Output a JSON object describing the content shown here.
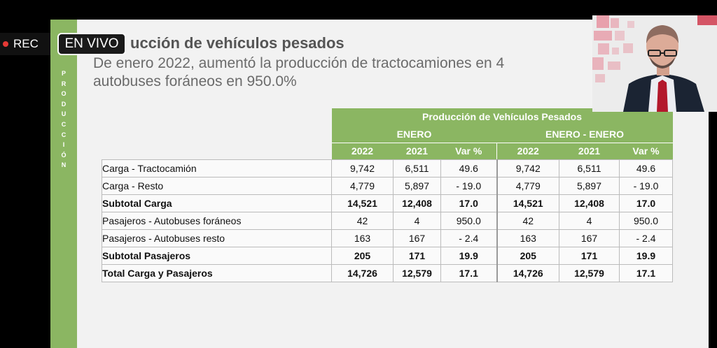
{
  "overlay": {
    "rec_label": "REC",
    "live_label": "EN VIVO"
  },
  "sidebar": {
    "letters": [
      "P",
      "R",
      "O",
      "D",
      "U",
      "C",
      "C",
      "I",
      "Ó",
      "N"
    ]
  },
  "slide": {
    "title": "ucción de vehículos pesados",
    "subtitle_line1": "De enero 2022, aumentó la producción de tractocamiones en 4",
    "subtitle_line2": "autobuses foráneos en 950.0%"
  },
  "table": {
    "caption": "Producción de Vehículos Pesados",
    "group1": "ENERO",
    "group2": "ENERO - ENERO",
    "columns": [
      "2022",
      "2021",
      "Var %",
      "2022",
      "2021",
      "Var %"
    ],
    "rows": [
      {
        "label": "Carga - Tractocamión",
        "values": [
          "9,742",
          "6,511",
          "49.6",
          "9,742",
          "6,511",
          "49.6"
        ]
      },
      {
        "label": "Carga - Resto",
        "values": [
          "4,779",
          "5,897",
          "- 19.0",
          "4,779",
          "5,897",
          "- 19.0"
        ]
      },
      {
        "label": "Subtotal Carga",
        "values": [
          "14,521",
          "12,408",
          "17.0",
          "14,521",
          "12,408",
          "17.0"
        ]
      },
      {
        "label": "Pasajeros - Autobuses foráneos",
        "values": [
          "42",
          "4",
          "950.0",
          "42",
          "4",
          "950.0"
        ]
      },
      {
        "label": "Pasajeros - Autobuses resto",
        "values": [
          "163",
          "167",
          "- 2.4",
          "163",
          "167",
          "- 2.4"
        ]
      },
      {
        "label": "Subtotal Pasajeros",
        "values": [
          "205",
          "171",
          "19.9",
          "205",
          "171",
          "19.9"
        ]
      },
      {
        "label": "Total Carga y Pasajeros",
        "values": [
          "14,726",
          "12,579",
          "17.1",
          "14,726",
          "12,579",
          "17.1"
        ]
      }
    ]
  },
  "colors": {
    "accent_green": "#8bb662",
    "rec_dot": "#e53935"
  }
}
